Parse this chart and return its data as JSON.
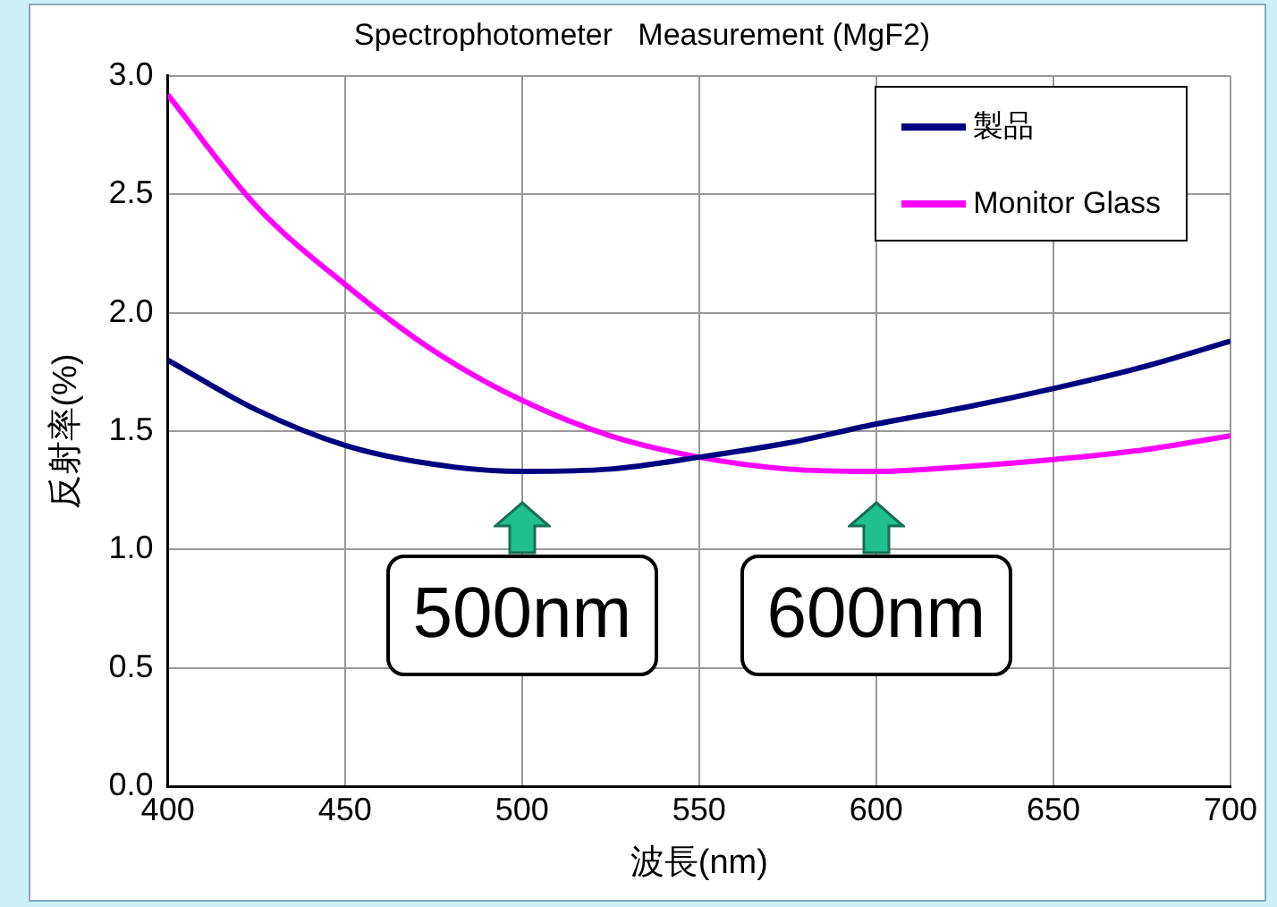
{
  "chart_data": {
    "type": "line",
    "title": "Spectrophotometer   Measurement (MgF2)",
    "xlabel": "波長(nm)",
    "ylabel": "反射率(%)",
    "x": [
      400,
      425,
      450,
      475,
      500,
      525,
      550,
      575,
      600,
      625,
      650,
      675,
      700
    ],
    "series": [
      {
        "name": "製品",
        "color": "#00007f",
        "values": [
          1.8,
          1.59,
          1.44,
          1.36,
          1.33,
          1.34,
          1.39,
          1.45,
          1.53,
          1.6,
          1.68,
          1.77,
          1.88
        ]
      },
      {
        "name": "Monitor Glass",
        "color": "#ff00ff",
        "values": [
          2.92,
          2.45,
          2.12,
          1.84,
          1.63,
          1.48,
          1.39,
          1.34,
          1.33,
          1.35,
          1.38,
          1.42,
          1.48
        ]
      }
    ],
    "xlim": [
      400,
      700
    ],
    "xticks": [
      400,
      450,
      500,
      550,
      600,
      650,
      700
    ],
    "ylim": [
      0,
      3
    ],
    "yticks": [
      {
        "value": 0,
        "label": "0.0"
      },
      0.5,
      {
        "value": 1,
        "label": "1.0"
      },
      1.5,
      {
        "value": 2,
        "label": "2.0"
      },
      2.5,
      {
        "value": 3,
        "label": "3.0"
      }
    ],
    "grid": true,
    "legend": "top right",
    "marker": "none",
    "line_style": "solid",
    "annotations": [
      {
        "text": "500nm",
        "x": 500,
        "y": 1.33
      },
      {
        "text": "600nm",
        "x": 600,
        "y": 1.33
      }
    ]
  }
}
